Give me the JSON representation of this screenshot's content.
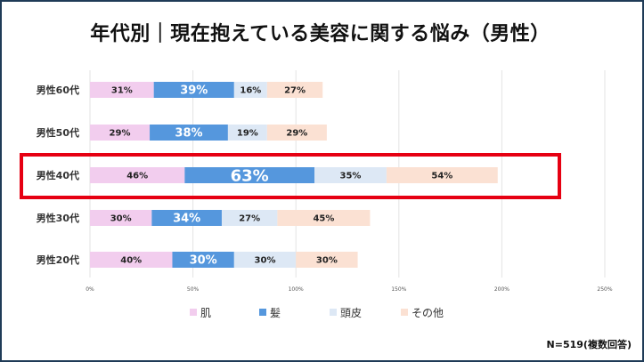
{
  "title": "年代別｜現在抱えている美容に関する悩み（男性）",
  "note": "N=519(複数回答)",
  "colors": {
    "frame": "#1f3b57",
    "highlight": "#e60012",
    "grid": "#e3e3e3",
    "series": [
      "#f2cdee",
      "#5597dd",
      "#dde8f5",
      "#fbe1d3"
    ]
  },
  "chart_data": {
    "type": "bar",
    "orientation": "horizontal",
    "stacked": true,
    "categories": [
      "男性60代",
      "男性50代",
      "男性40代",
      "男性30代",
      "男性20代"
    ],
    "series": [
      {
        "name": "肌",
        "values": [
          31,
          29,
          46,
          30,
          40
        ]
      },
      {
        "name": "髪",
        "values": [
          39,
          38,
          63,
          34,
          30
        ]
      },
      {
        "name": "頭皮",
        "values": [
          16,
          19,
          35,
          27,
          30
        ]
      },
      {
        "name": "その他",
        "values": [
          27,
          29,
          54,
          45,
          30
        ]
      }
    ],
    "value_labels": [
      [
        "31%",
        "39%",
        "16%",
        "27%"
      ],
      [
        "29%",
        "38%",
        "19%",
        "29%"
      ],
      [
        "46%",
        "63%",
        "35%",
        "54%"
      ],
      [
        "30%",
        "34%",
        "27%",
        "45%"
      ],
      [
        "40%",
        "30%",
        "30%",
        "30%"
      ]
    ],
    "xticks": [
      0,
      50,
      100,
      150,
      200,
      250
    ],
    "xtick_labels": [
      "0%",
      "50%",
      "100%",
      "150%",
      "200%",
      "250%"
    ],
    "xlim": [
      0,
      250
    ],
    "highlight_category": "男性40代",
    "legend_position": "bottom",
    "grid": true
  }
}
